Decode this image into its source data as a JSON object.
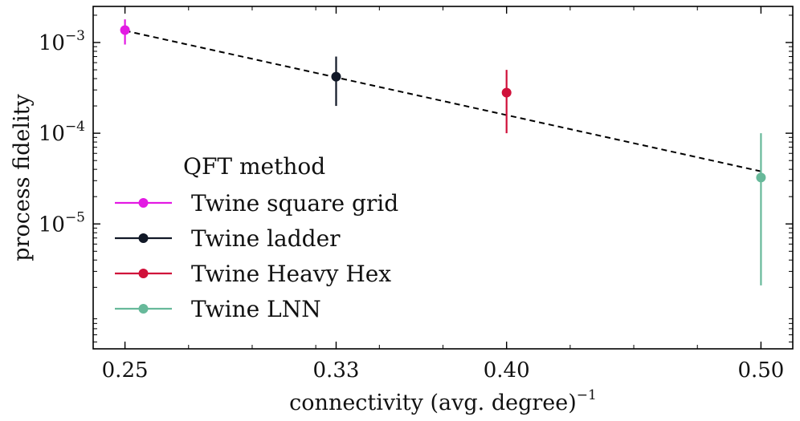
{
  "chart_data": {
    "type": "scatter",
    "xscale": "linear",
    "yscale": "log",
    "xlabel": "connectivity (avg. degree)",
    "xlabel_exponent": "−1",
    "ylabel": "process fidelity",
    "xlim": [
      0.2375,
      0.5125
    ],
    "ylim": [
      4.2e-07,
      0.0025
    ],
    "xticks": [
      {
        "value": 0.25,
        "label": "0.25"
      },
      {
        "value": 0.333,
        "label": "0.33"
      },
      {
        "value": 0.4,
        "label": "0.40"
      },
      {
        "value": 0.5,
        "label": "0.50"
      }
    ],
    "yticks": [
      {
        "value": 0.001,
        "base": "10",
        "exp": "−3"
      },
      {
        "value": 0.0001,
        "base": "10",
        "exp": "−4"
      },
      {
        "value": 1e-05,
        "base": "10",
        "exp": "−5"
      }
    ],
    "legend": {
      "title": "QFT method",
      "position": "lower-left"
    },
    "series": [
      {
        "name": "Twine square grid",
        "color": "#e31ae3",
        "x": 0.25,
        "y": 0.00137,
        "y_lower": 0.00095,
        "y_upper": 0.0018
      },
      {
        "name": "Twine ladder",
        "color": "#111827",
        "x": 0.333,
        "y": 0.00042,
        "y_lower": 0.0002,
        "y_upper": 0.0007
      },
      {
        "name": "Twine Heavy Hex",
        "color": "#d0103a",
        "x": 0.4,
        "y": 0.00028,
        "y_lower": 0.0001,
        "y_upper": 0.0005
      },
      {
        "name": "Twine LNN",
        "color": "#67b99a",
        "x": 0.5,
        "y": 3.25e-05,
        "y_lower": 2.1e-06,
        "y_upper": 0.0001
      }
    ],
    "fit_line": {
      "style": "dashed",
      "color": "#000000",
      "points": [
        [
          0.25,
          0.00135
        ],
        [
          0.5,
          3.8e-05
        ]
      ]
    }
  }
}
